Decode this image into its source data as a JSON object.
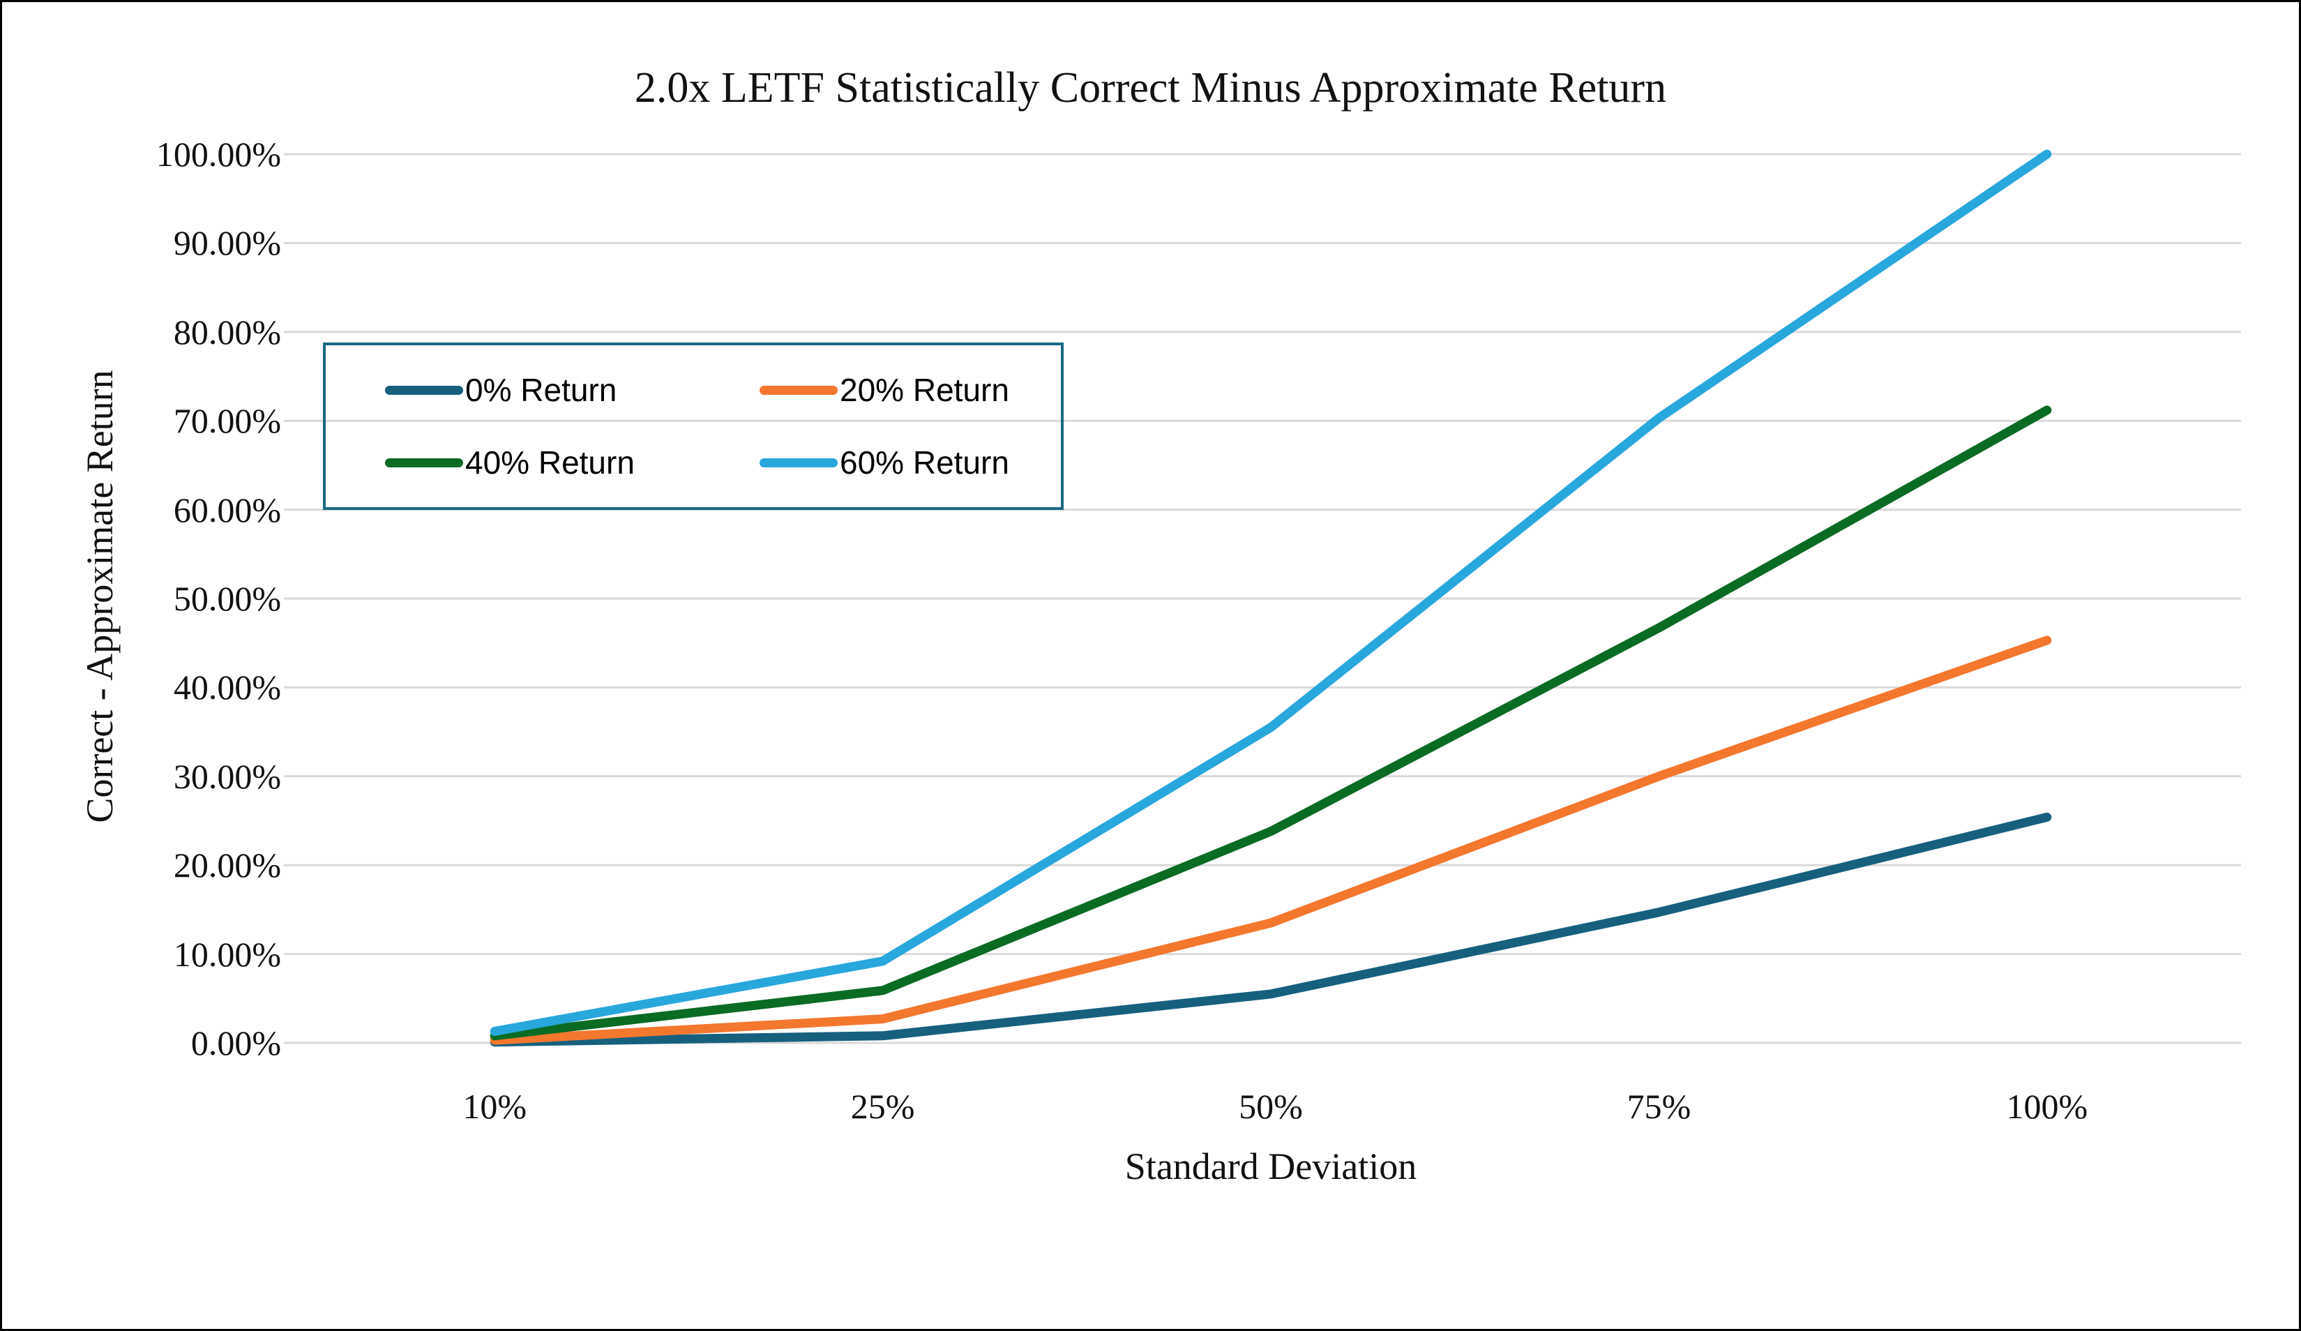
{
  "chart_data": {
    "type": "line",
    "title": "2.0x LETF Statistically Correct Minus Approximate Return",
    "xlabel": "Standard Deviation",
    "ylabel": "Correct - Approximate Return",
    "categories": [
      "10%",
      "25%",
      "50%",
      "75%",
      "100%"
    ],
    "series": [
      {
        "name": "0% Return",
        "color": "#16607E",
        "values": [
          0.1,
          0.8,
          5.5,
          14.7,
          25.4
        ]
      },
      {
        "name": "20% Return",
        "color": "#F4772E",
        "values": [
          0.3,
          2.7,
          13.5,
          30.0,
          45.3
        ]
      },
      {
        "name": "40% Return",
        "color": "#0A6B23",
        "values": [
          0.8,
          5.9,
          23.8,
          46.7,
          71.2
        ]
      },
      {
        "name": "60% Return",
        "color": "#28A7DC",
        "values": [
          1.3,
          9.2,
          35.5,
          70.3,
          100.0
        ]
      }
    ],
    "y_axis": {
      "min": 0,
      "max": 100,
      "step": 10,
      "tick_labels": [
        "0.00%",
        "10.00%",
        "20.00%",
        "30.00%",
        "40.00%",
        "50.00%",
        "60.00%",
        "70.00%",
        "80.00%",
        "90.00%",
        "100.00%"
      ]
    },
    "ylim": [
      0,
      100
    ],
    "grid": true,
    "legend_position": "inside-top-left"
  },
  "colors": {
    "gridline": "#D9D9D9",
    "legend_border": "#1A6A82",
    "frame_border": "#000000",
    "background": "#FFFFFF",
    "text": "#111111"
  }
}
